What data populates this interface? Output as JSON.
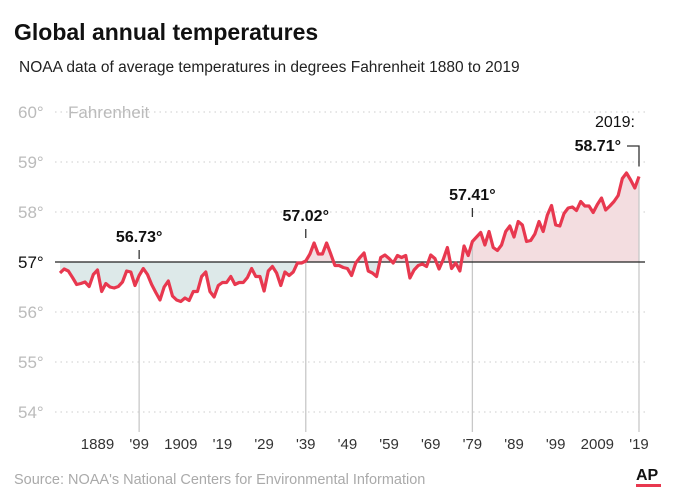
{
  "chart_data": {
    "type": "area",
    "title": "Global annual temperatures",
    "subtitle": "NOAA data of average temperatures in degrees Fahrenheit 1880 to 2019",
    "ylabel": "Fahrenheit",
    "ylim": [
      54,
      60
    ],
    "yticks": [
      "54°",
      "55°",
      "56°",
      "57°",
      "58°",
      "59°",
      "60°"
    ],
    "baseline": 57,
    "xlim": [
      1880,
      2019
    ],
    "xticks": [
      {
        "year": 1889,
        "label": "1889"
      },
      {
        "year": 1899,
        "label": "'99"
      },
      {
        "year": 1909,
        "label": "1909"
      },
      {
        "year": 1919,
        "label": "'19"
      },
      {
        "year": 1929,
        "label": "'29"
      },
      {
        "year": 1939,
        "label": "'39"
      },
      {
        "year": 1949,
        "label": "'49"
      },
      {
        "year": 1959,
        "label": "'59"
      },
      {
        "year": 1969,
        "label": "'69"
      },
      {
        "year": 1979,
        "label": "'79"
      },
      {
        "year": 1989,
        "label": "'89"
      },
      {
        "year": 1999,
        "label": "'99"
      },
      {
        "year": 2009,
        "label": "2009"
      },
      {
        "year": 2019,
        "label": "'19"
      }
    ],
    "grid": true,
    "colors": {
      "line": "#e8384f",
      "below": "#dde9e9",
      "above": "#f3dde0",
      "baseline": "#222222",
      "grid": "#cccccc"
    },
    "annotations": [
      {
        "year": 1899,
        "label": "56.73°"
      },
      {
        "year": 1939,
        "label": "57.02°"
      },
      {
        "year": 1979,
        "label": "57.41°"
      },
      {
        "year": 2019,
        "prefix": "2019:",
        "label": "58.71°"
      }
    ],
    "start_year": 1880,
    "values": [
      56.78,
      56.86,
      56.82,
      56.69,
      56.55,
      56.57,
      56.6,
      56.51,
      56.75,
      56.84,
      56.41,
      56.57,
      56.5,
      56.48,
      56.51,
      56.6,
      56.82,
      56.8,
      56.53,
      56.73,
      56.87,
      56.75,
      56.55,
      56.39,
      56.24,
      56.5,
      56.62,
      56.32,
      56.24,
      56.21,
      56.28,
      56.23,
      56.41,
      56.41,
      56.71,
      56.8,
      56.41,
      56.3,
      56.53,
      56.59,
      56.59,
      56.71,
      56.55,
      56.59,
      56.59,
      56.69,
      56.87,
      56.71,
      56.71,
      56.42,
      56.82,
      56.91,
      56.78,
      56.53,
      56.8,
      56.73,
      56.8,
      56.98,
      56.98,
      57.02,
      57.16,
      57.38,
      57.16,
      57.16,
      57.38,
      57.16,
      56.93,
      56.93,
      56.89,
      56.87,
      56.73,
      56.98,
      57.09,
      57.18,
      56.82,
      56.78,
      56.71,
      57.09,
      57.14,
      57.07,
      56.98,
      57.13,
      57.09,
      57.13,
      56.68,
      56.84,
      56.93,
      56.96,
      56.91,
      57.14,
      57.07,
      56.86,
      57.05,
      57.29,
      56.87,
      56.98,
      56.82,
      57.32,
      57.13,
      57.41,
      57.5,
      57.59,
      57.34,
      57.61,
      57.29,
      57.23,
      57.34,
      57.61,
      57.72,
      57.5,
      57.81,
      57.74,
      57.41,
      57.43,
      57.56,
      57.81,
      57.61,
      57.94,
      58.13,
      57.74,
      57.72,
      57.97,
      58.08,
      58.1,
      58.03,
      58.21,
      58.12,
      58.12,
      57.99,
      58.15,
      58.28,
      58.04,
      58.12,
      58.21,
      58.33,
      58.67,
      58.78,
      58.64,
      58.48,
      58.71
    ]
  },
  "source": "Source: NOAA's National Centers for Environmental Information",
  "logo": "AP"
}
